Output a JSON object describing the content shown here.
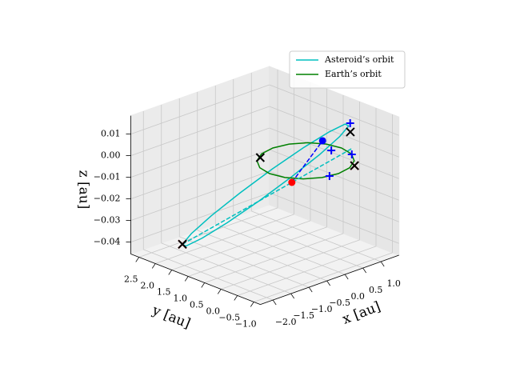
{
  "chart_data": {
    "type": "line3d",
    "xlabel": "x [au]",
    "ylabel": "y [au]",
    "zlabel": "z [au]",
    "xlim": [
      -2.35,
      1.5
    ],
    "ylim": [
      -1.2,
      2.75
    ],
    "zlim": [
      -0.0455,
      0.0185
    ],
    "xticks": [
      {
        "value": -2.0,
        "label": "−2.0"
      },
      {
        "value": -1.5,
        "label": "−1.5"
      },
      {
        "value": -1.0,
        "label": "−1.0"
      },
      {
        "value": -0.5,
        "label": "−0.5"
      },
      {
        "value": 0.0,
        "label": "0.0"
      },
      {
        "value": 0.5,
        "label": "0.5"
      },
      {
        "value": 1.0,
        "label": "1.0"
      }
    ],
    "yticks": [
      {
        "value": 2.5,
        "label": "2.5"
      },
      {
        "value": 2.0,
        "label": "2.0"
      },
      {
        "value": 1.5,
        "label": "1.5"
      },
      {
        "value": 1.0,
        "label": "1.0"
      },
      {
        "value": 0.5,
        "label": "0.5"
      },
      {
        "value": 0.0,
        "label": "0.0"
      },
      {
        "value": -0.5,
        "label": "−0.5"
      },
      {
        "value": -1.0,
        "label": "−1.0"
      }
    ],
    "zticks": [
      0.01,
      {
        "value": 0.0,
        "label": "0.00"
      },
      {
        "value": -0.01,
        "label": "−0.01"
      },
      {
        "value": -0.02,
        "label": "−0.02"
      },
      {
        "value": -0.03,
        "label": "−0.03"
      },
      {
        "value": -0.04,
        "label": "−0.04"
      }
    ],
    "grid": true,
    "legend_loc": "upper right",
    "series": [
      {
        "name": "Asteroid’s orbit",
        "color": "#00bfbf",
        "linestyle": "solid",
        "x": [
          0.56,
          0.75,
          0.74,
          0.54,
          0.18,
          -0.29,
          -0.79,
          -1.25,
          -1.6,
          -1.79,
          -1.78,
          -1.58,
          -1.22,
          -0.75,
          -0.25,
          0.21,
          0.56
        ],
        "y": [
          -0.7,
          -0.38,
          0.09,
          0.65,
          1.21,
          1.68,
          2.0,
          2.11,
          2.0,
          1.68,
          1.21,
          0.65,
          0.09,
          -0.38,
          -0.7,
          -0.81,
          -0.7
        ],
        "z": [
          0.017,
          0.0148,
          0.0085,
          -0.0009,
          -0.012,
          -0.0231,
          -0.0325,
          -0.0388,
          -0.041,
          -0.0388,
          -0.0325,
          -0.0231,
          -0.012,
          -0.0009,
          0.0085,
          0.0148,
          0.017
        ]
      },
      {
        "name": "Earth’s orbit",
        "color": "#008000",
        "linestyle": "solid",
        "x": [
          1,
          0.924,
          0.707,
          0.383,
          0,
          -0.383,
          -0.707,
          -0.924,
          -1,
          -0.924,
          -0.707,
          -0.383,
          0,
          0.383,
          0.707,
          0.924,
          1
        ],
        "y": [
          0,
          0.383,
          0.707,
          0.924,
          1,
          0.924,
          0.707,
          0.383,
          0,
          -0.383,
          -0.707,
          -0.924,
          -1,
          -0.924,
          -0.707,
          -0.383,
          0
        ],
        "z": [
          0,
          0,
          0,
          0,
          0,
          0,
          0,
          0,
          0,
          0,
          0,
          0,
          0,
          0,
          0,
          0,
          0
        ]
      },
      {
        "color": "#00bfbf",
        "linestyle": "dashed",
        "x": [
          -1.6,
          0.58
        ],
        "y": [
          2.0,
          -0.8
        ],
        "z": [
          -0.041,
          0.0072
        ]
      },
      {
        "color": "#0000ff",
        "linestyle": "dashed",
        "x": [
          -0.2,
          0.59
        ],
        "y": [
          0.2,
          0.13
        ],
        "z": [
          -0.01,
          0.005
        ]
      },
      {
        "color": "#ff0000",
        "marker": "o",
        "x": [
          -0.2
        ],
        "y": [
          0.2
        ],
        "z": [
          -0.01
        ]
      },
      {
        "color": "#0000ff",
        "marker": "o",
        "x": [
          0.59
        ],
        "y": [
          0.13
        ],
        "z": [
          0.005
        ]
      },
      {
        "color": "#ff0000",
        "marker": "x",
        "x": [
          -1.6,
          0.53
        ],
        "y": [
          2.0,
          -0.91
        ],
        "z": [
          -0.041,
          0
        ]
      },
      {
        "color": "#000000",
        "marker": "x",
        "x": [
          -1.6,
          -0.54,
          0.76,
          0.53
        ],
        "y": [
          2.0,
          0.79,
          -0.53,
          -0.91
        ],
        "z": [
          -0.041,
          0,
          0.012,
          0
        ]
      },
      {
        "color": "#0000ff",
        "marker": "+",
        "x": [
          0.6,
          0.76,
          0.91,
          -0.22
        ],
        "y": [
          -0.7,
          0.05,
          -0.41,
          -0.97
        ],
        "z": [
          0.018,
          0,
          0,
          0
        ]
      }
    ]
  }
}
